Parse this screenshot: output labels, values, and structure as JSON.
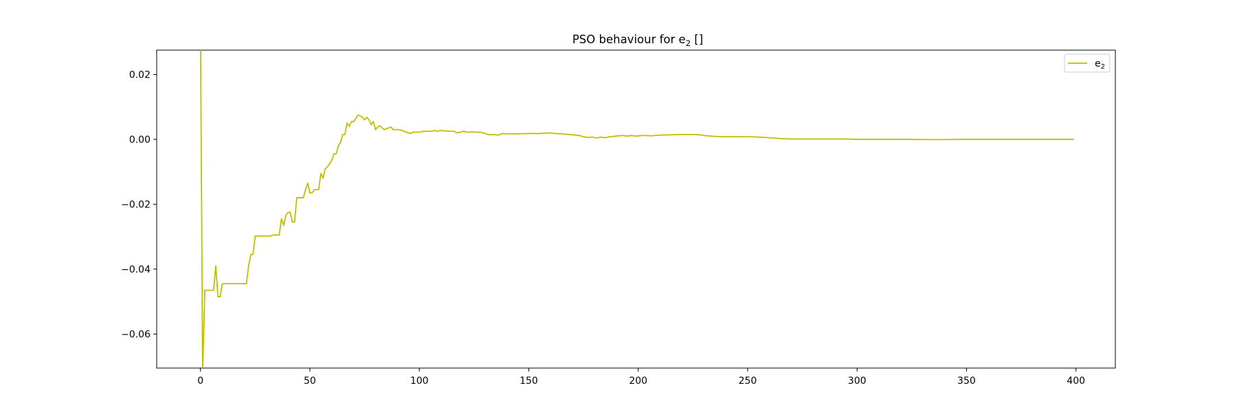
{
  "chart_data": {
    "type": "line",
    "title_main": "PSO behaviour for e",
    "title_sub": "2",
    "title_tail": " []",
    "xlabel": "",
    "ylabel": "",
    "xlim": [
      -20,
      418
    ],
    "ylim": [
      -0.0705,
      0.0275
    ],
    "x_ticks": [
      0,
      50,
      100,
      150,
      200,
      250,
      300,
      350,
      400
    ],
    "x_tick_labels": [
      "0",
      "50",
      "100",
      "150",
      "200",
      "250",
      "300",
      "350",
      "400"
    ],
    "y_ticks": [
      0.02,
      0.0,
      -0.02,
      -0.04,
      -0.06
    ],
    "y_tick_labels": [
      "0.02",
      "0.00",
      "−0.02",
      "−0.04",
      "−0.06"
    ],
    "grid": false,
    "legend_position": "top-right",
    "series": [
      {
        "name_main": "e",
        "name_sub": "2",
        "color": "#bfbf00",
        "points": [
          [
            0,
            0.035
          ],
          [
            1,
            -0.072
          ],
          [
            2,
            -0.0465
          ],
          [
            5,
            -0.0465
          ],
          [
            6,
            -0.0465
          ],
          [
            7,
            -0.039
          ],
          [
            8,
            -0.0485
          ],
          [
            9,
            -0.0485
          ],
          [
            10,
            -0.0445
          ],
          [
            20,
            -0.0445
          ],
          [
            21,
            -0.0445
          ],
          [
            22,
            -0.039
          ],
          [
            23,
            -0.0355
          ],
          [
            24,
            -0.0355
          ],
          [
            25,
            -0.0298
          ],
          [
            32,
            -0.0298
          ],
          [
            33,
            -0.0295
          ],
          [
            36,
            -0.0295
          ],
          [
            37,
            -0.0245
          ],
          [
            38,
            -0.0265
          ],
          [
            39,
            -0.0235
          ],
          [
            40,
            -0.0225
          ],
          [
            41,
            -0.0225
          ],
          [
            42,
            -0.0255
          ],
          [
            43,
            -0.0255
          ],
          [
            44,
            -0.018
          ],
          [
            47,
            -0.018
          ],
          [
            48,
            -0.0155
          ],
          [
            49,
            -0.0135
          ],
          [
            50,
            -0.0165
          ],
          [
            51,
            -0.0165
          ],
          [
            52,
            -0.0155
          ],
          [
            54,
            -0.0155
          ],
          [
            55,
            -0.0105
          ],
          [
            56,
            -0.012
          ],
          [
            57,
            -0.009
          ],
          [
            58,
            -0.0085
          ],
          [
            60,
            -0.0065
          ],
          [
            61,
            -0.0045
          ],
          [
            62,
            -0.0045
          ],
          [
            63,
            -0.002
          ],
          [
            64,
            -0.001
          ],
          [
            65,
            0.0015
          ],
          [
            66,
            0.0015
          ],
          [
            67,
            0.005
          ],
          [
            68,
            0.004
          ],
          [
            69,
            0.0055
          ],
          [
            70,
            0.0055
          ],
          [
            71,
            0.0065
          ],
          [
            72,
            0.0075
          ],
          [
            73,
            0.0072
          ],
          [
            74,
            0.0068
          ],
          [
            75,
            0.006
          ],
          [
            76,
            0.0068
          ],
          [
            77,
            0.006
          ],
          [
            78,
            0.0045
          ],
          [
            79,
            0.0055
          ],
          [
            80,
            0.003
          ],
          [
            81,
            0.0038
          ],
          [
            82,
            0.0042
          ],
          [
            83,
            0.0035
          ],
          [
            84,
            0.003
          ],
          [
            85,
            0.0033
          ],
          [
            86,
            0.0035
          ],
          [
            87,
            0.0038
          ],
          [
            88,
            0.003
          ],
          [
            90,
            0.003
          ],
          [
            92,
            0.0028
          ],
          [
            94,
            0.0022
          ],
          [
            96,
            0.0018
          ],
          [
            97,
            0.0022
          ],
          [
            100,
            0.0022
          ],
          [
            102,
            0.0025
          ],
          [
            106,
            0.0025
          ],
          [
            107,
            0.0028
          ],
          [
            108,
            0.0025
          ],
          [
            110,
            0.0027
          ],
          [
            114,
            0.0025
          ],
          [
            116,
            0.0025
          ],
          [
            117,
            0.002
          ],
          [
            119,
            0.0022
          ],
          [
            120,
            0.0025
          ],
          [
            122,
            0.0022
          ],
          [
            124,
            0.0023
          ],
          [
            126,
            0.0022
          ],
          [
            128,
            0.0022
          ],
          [
            130,
            0.0018
          ],
          [
            132,
            0.0014
          ],
          [
            134,
            0.0015
          ],
          [
            136,
            0.0013
          ],
          [
            138,
            0.0018
          ],
          [
            140,
            0.0017
          ],
          [
            145,
            0.0017
          ],
          [
            150,
            0.0018
          ],
          [
            155,
            0.0018
          ],
          [
            160,
            0.002
          ],
          [
            162,
            0.0018
          ],
          [
            165,
            0.0017
          ],
          [
            170,
            0.0014
          ],
          [
            173,
            0.0012
          ],
          [
            175,
            0.0008
          ],
          [
            177,
            0.0006
          ],
          [
            179,
            0.0007
          ],
          [
            181,
            0.0004
          ],
          [
            183,
            0.0007
          ],
          [
            185,
            0.0005
          ],
          [
            187,
            0.0008
          ],
          [
            190,
            0.001
          ],
          [
            193,
            0.0012
          ],
          [
            195,
            0.001
          ],
          [
            197,
            0.0012
          ],
          [
            199,
            0.001
          ],
          [
            202,
            0.0012
          ],
          [
            206,
            0.0011
          ],
          [
            210,
            0.0013
          ],
          [
            215,
            0.0014
          ],
          [
            220,
            0.0015
          ],
          [
            225,
            0.0015
          ],
          [
            228,
            0.0014
          ],
          [
            230,
            0.0012
          ],
          [
            235,
            0.0009
          ],
          [
            240,
            0.0008
          ],
          [
            245,
            0.0008
          ],
          [
            250,
            0.0008
          ],
          [
            255,
            0.0007
          ],
          [
            258,
            0.0006
          ],
          [
            262,
            0.0004
          ],
          [
            266,
            0.0002
          ],
          [
            270,
            0.0001
          ],
          [
            275,
            0.0001
          ],
          [
            285,
            0.0001
          ],
          [
            295,
            0.0001
          ],
          [
            300,
            0.0
          ],
          [
            320,
            0.0
          ],
          [
            335,
            -0.0001
          ],
          [
            350,
            0.0
          ],
          [
            370,
            0.0
          ],
          [
            385,
            0.0
          ],
          [
            399,
            0.0
          ]
        ]
      }
    ]
  }
}
